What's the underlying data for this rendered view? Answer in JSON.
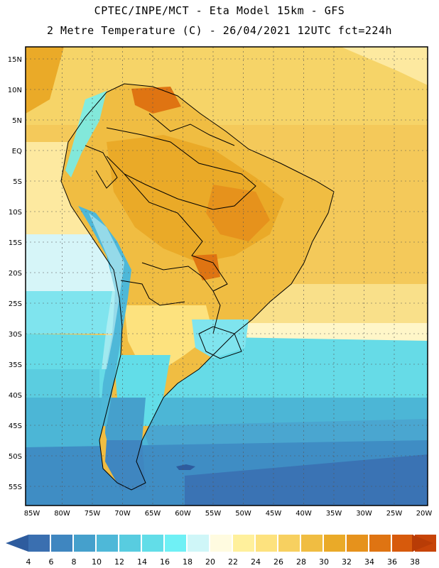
{
  "header": {
    "line1": "CPTEC/INPE/MCT -  Eta Model 15km - GFS",
    "line2": "2 Metre Temperature (C) - 26/04/2021 12UTC fct=224h"
  },
  "map": {
    "lat_labels": [
      "15N",
      "10N",
      "5N",
      "EQ",
      "5S",
      "10S",
      "15S",
      "20S",
      "25S",
      "30S",
      "35S",
      "40S",
      "45S",
      "50S",
      "55S"
    ],
    "lon_labels": [
      "85W",
      "80W",
      "75W",
      "70W",
      "65W",
      "60W",
      "55W",
      "50W",
      "45W",
      "40W",
      "35W",
      "30W",
      "25W",
      "20W"
    ]
  },
  "colorbar": {
    "labels": [
      "4",
      "6",
      "8",
      "10",
      "12",
      "14",
      "16",
      "18",
      "20",
      "22",
      "24",
      "26",
      "28",
      "30",
      "32",
      "34",
      "36",
      "38"
    ],
    "colors": [
      "#3a6fb0",
      "#3f86c0",
      "#45a0cc",
      "#4eb8d8",
      "#58cce0",
      "#62dde8",
      "#6ff0f5",
      "#cff6f8",
      "#fffbe0",
      "#fff09c",
      "#fde27e",
      "#f7d060",
      "#f0bd42",
      "#eaaa28",
      "#e6921c",
      "#df7412",
      "#d75a0c",
      "#c74408"
    ],
    "arrow_low": "#2e5c9e",
    "arrow_high": "#b83c06"
  }
}
